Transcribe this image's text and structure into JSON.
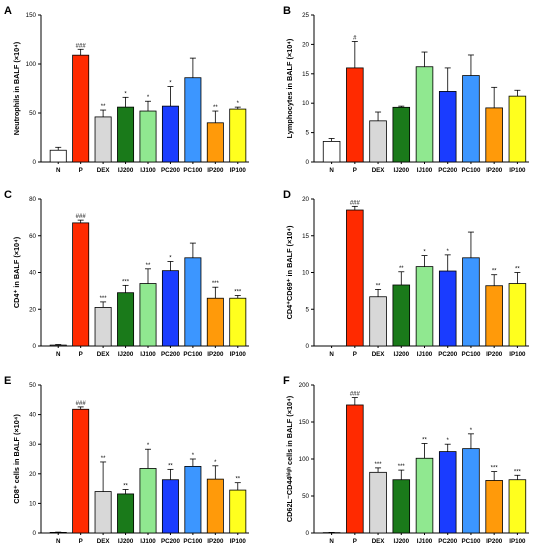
{
  "colors": [
    "#ffffff",
    "#ff2a00",
    "#d8d8d8",
    "#1a7a1a",
    "#90e890",
    "#1a3cff",
    "#3c96ff",
    "#ff9a0a",
    "#ffff1e"
  ],
  "chart_data": [
    {
      "type": "bar",
      "panel": "A",
      "ylabel": "Neutrophils in BALF (×10⁴)",
      "categories": [
        "N",
        "P",
        "DEX",
        "IJ200",
        "IJ100",
        "PC200",
        "PC100",
        "IP200",
        "IP100"
      ],
      "values": [
        12,
        109,
        46,
        56,
        52,
        57,
        86,
        40,
        54
      ],
      "errors": [
        3,
        6,
        7,
        10,
        10,
        20,
        20,
        12,
        2
      ],
      "significance": [
        "",
        "###",
        "**",
        "*",
        "*",
        "*",
        "",
        "**",
        "*"
      ],
      "ylim": [
        0,
        150
      ],
      "yticks": [
        0,
        50,
        100,
        150
      ],
      "grid": false
    },
    {
      "type": "bar",
      "panel": "B",
      "ylabel": "Lymphocytes in BALF (×10⁴)",
      "categories": [
        "N",
        "P",
        "DEX",
        "IJ200",
        "IJ100",
        "PC200",
        "PC100",
        "IP200",
        "IP100"
      ],
      "values": [
        3.5,
        16,
        7,
        9.3,
        16.2,
        12,
        14.7,
        9.2,
        11.2
      ],
      "errors": [
        0.5,
        4.5,
        1.5,
        0.2,
        2.5,
        4,
        3.5,
        3.5,
        1
      ],
      "significance": [
        "",
        "#",
        "",
        "",
        "",
        "",
        "",
        "",
        ""
      ],
      "ylim": [
        0,
        25
      ],
      "yticks": [
        0,
        5,
        10,
        15,
        20,
        25
      ],
      "grid": false
    },
    {
      "type": "bar",
      "panel": "C",
      "ylabel": "CD4⁺ in BALF (×10⁴)",
      "categories": [
        "N",
        "P",
        "DEX",
        "IJ200",
        "IJ100",
        "PC200",
        "PC100",
        "IP200",
        "IP100"
      ],
      "values": [
        0.5,
        67,
        21,
        29,
        34,
        41,
        48,
        26,
        26
      ],
      "errors": [
        0.3,
        1.5,
        3,
        4,
        8,
        5,
        8,
        6,
        1.5
      ],
      "significance": [
        "",
        "###",
        "***",
        "***",
        "**",
        "*",
        "",
        "***",
        "***"
      ],
      "ylim": [
        0,
        80
      ],
      "yticks": [
        0,
        20,
        40,
        60,
        80
      ],
      "grid": false
    },
    {
      "type": "bar",
      "panel": "D",
      "ylabel": "CD4⁺CD69⁺ in BALF (×10⁴)",
      "categories": [
        "N",
        "P",
        "DEX",
        "IJ200",
        "IJ100",
        "PC200",
        "PC100",
        "IP200",
        "IP100"
      ],
      "values": [
        0,
        18.5,
        6.7,
        8.3,
        10.8,
        10.2,
        12,
        8.2,
        8.5
      ],
      "errors": [
        0,
        0.5,
        1,
        1.8,
        1.5,
        2.2,
        3.5,
        1.5,
        1.5
      ],
      "significance": [
        "",
        "###",
        "**",
        "**",
        "*",
        "*",
        "",
        "**",
        "**"
      ],
      "ylim": [
        0,
        20
      ],
      "yticks": [
        0,
        5,
        10,
        15,
        20
      ],
      "grid": false
    },
    {
      "type": "bar",
      "panel": "E",
      "ylabel": "CD8⁺ cells in BALF (×10⁴)",
      "categories": [
        "N",
        "P",
        "DEX",
        "IJ200",
        "IJ100",
        "PC200",
        "PC100",
        "IP200",
        "IP100"
      ],
      "values": [
        0.2,
        41.8,
        14,
        13.2,
        21.8,
        18,
        22.5,
        18.2,
        14.5
      ],
      "errors": [
        0.1,
        0.8,
        10,
        1.5,
        6.5,
        3.5,
        2.5,
        4.5,
        2.5
      ],
      "significance": [
        "",
        "###",
        "**",
        "**",
        "*",
        "**",
        "*",
        "*",
        "**"
      ],
      "ylim": [
        0,
        50
      ],
      "yticks": [
        0,
        10,
        20,
        30,
        40,
        50
      ],
      "grid": false
    },
    {
      "type": "bar",
      "panel": "F",
      "ylabel": "CD62L⁻CD44ʰⁱᵍʰ cells in BALF (×10⁴)",
      "categories": [
        "N",
        "P",
        "DEX",
        "IJ200",
        "IJ100",
        "PC200",
        "PC100",
        "IP200",
        "IP100"
      ],
      "values": [
        0.5,
        173,
        82,
        72,
        101,
        110,
        114,
        71,
        72
      ],
      "errors": [
        0.3,
        10,
        6,
        13,
        20,
        10,
        20,
        12,
        6
      ],
      "significance": [
        "",
        "###",
        "***",
        "***",
        "**",
        "*",
        "*",
        "***",
        "***"
      ],
      "ylim": [
        0,
        200
      ],
      "yticks": [
        0,
        50,
        100,
        150,
        200
      ],
      "grid": false
    }
  ]
}
